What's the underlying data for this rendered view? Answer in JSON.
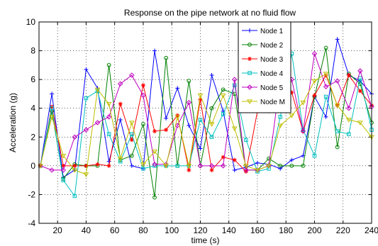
{
  "chart_data": {
    "type": "line",
    "title": "Response on the pipe network at no fluid flow",
    "xlabel": "time (s)",
    "ylabel": "Acceleration (g)",
    "xlim": [
      7,
      240
    ],
    "ylim": [
      -4,
      10
    ],
    "xticks": [
      20,
      40,
      60,
      80,
      100,
      120,
      140,
      160,
      180,
      200,
      220,
      240
    ],
    "yticks": [
      -4,
      -2,
      0,
      2,
      4,
      6,
      8,
      10
    ],
    "grid": true,
    "legend_position": "top-right",
    "x": [
      8,
      16,
      24,
      32,
      40,
      48,
      56,
      64,
      72,
      80,
      88,
      96,
      104,
      112,
      120,
      128,
      136,
      144,
      152,
      160,
      168,
      176,
      184,
      192,
      200,
      208,
      216,
      224,
      232,
      240
    ],
    "series": [
      {
        "name": "Node 1",
        "color": "#0000ff",
        "marker": "plus",
        "values": [
          0.0,
          5.0,
          -0.8,
          -0.3,
          6.7,
          5.4,
          0.3,
          3.2,
          0.0,
          -0.2,
          8.0,
          3.3,
          5.4,
          2.8,
          1.2,
          6.3,
          3.8,
          -0.3,
          -0.1,
          0.2,
          0.1,
          -0.2,
          0.4,
          0.7,
          4.8,
          3.4,
          8.8,
          6.3,
          5.9,
          5.0
        ]
      },
      {
        "name": "Node 2",
        "color": "#008000",
        "marker": "circle",
        "values": [
          0.0,
          3.8,
          -0.9,
          0.1,
          0.0,
          0.0,
          7.0,
          0.4,
          0.7,
          2.9,
          -2.2,
          7.5,
          0.0,
          5.9,
          0.0,
          4.0,
          5.3,
          5.0,
          -0.3,
          -0.3,
          0.5,
          0.0,
          0.0,
          0.0,
          4.8,
          8.2,
          1.3,
          6.4,
          5.7,
          3.0
        ]
      },
      {
        "name": "Node 3",
        "color": "#ff0000",
        "marker": "star",
        "values": [
          0.0,
          4.1,
          0.0,
          0.0,
          0.0,
          0.1,
          0.0,
          4.3,
          1.8,
          5.6,
          2.4,
          2.5,
          3.5,
          -0.3,
          4.6,
          -0.3,
          0.6,
          0.4,
          -0.4,
          3.8,
          3.8,
          6.5,
          5.1,
          2.4,
          4.9,
          6.3,
          4.2,
          6.3,
          5.2,
          4.2
        ]
      },
      {
        "name": "Node 4",
        "color": "#00bfbf",
        "marker": "square",
        "values": [
          0.0,
          4.0,
          -1.0,
          -2.1,
          4.7,
          5.2,
          2.2,
          0.3,
          2.2,
          -0.2,
          0.0,
          0.0,
          0.0,
          0.0,
          3.2,
          2.0,
          3.6,
          5.6,
          1.8,
          -0.4,
          -0.2,
          3.4,
          7.8,
          2.5,
          0.7,
          4.8,
          2.4,
          2.2,
          6.1,
          2.5
        ]
      },
      {
        "name": "Node 5",
        "color": "#bf00bf",
        "marker": "diamond",
        "values": [
          0.0,
          -0.3,
          -0.3,
          2.0,
          2.5,
          3.0,
          3.4,
          5.7,
          6.3,
          4.9,
          0.1,
          0.1,
          2.8,
          4.4,
          0.0,
          0.0,
          0.0,
          6.0,
          -0.3,
          -0.3,
          0.0,
          6.0,
          6.0,
          2.4,
          7.8,
          5.5,
          5.9,
          4.0,
          6.6,
          4.1
        ]
      },
      {
        "name": "Node M",
        "color": "#bfbf00",
        "marker": "triangle-down",
        "values": [
          0.0,
          3.4,
          0.7,
          -0.3,
          -0.6,
          5.3,
          4.3,
          0.5,
          3.0,
          0.1,
          1.0,
          0.0,
          3.4,
          0.0,
          4.9,
          2.9,
          4.9,
          2.6,
          0.0,
          -0.3,
          0.0,
          2.8,
          3.5,
          4.4,
          5.9,
          6.4,
          4.2,
          3.2,
          3.0,
          2.0
        ]
      }
    ]
  }
}
